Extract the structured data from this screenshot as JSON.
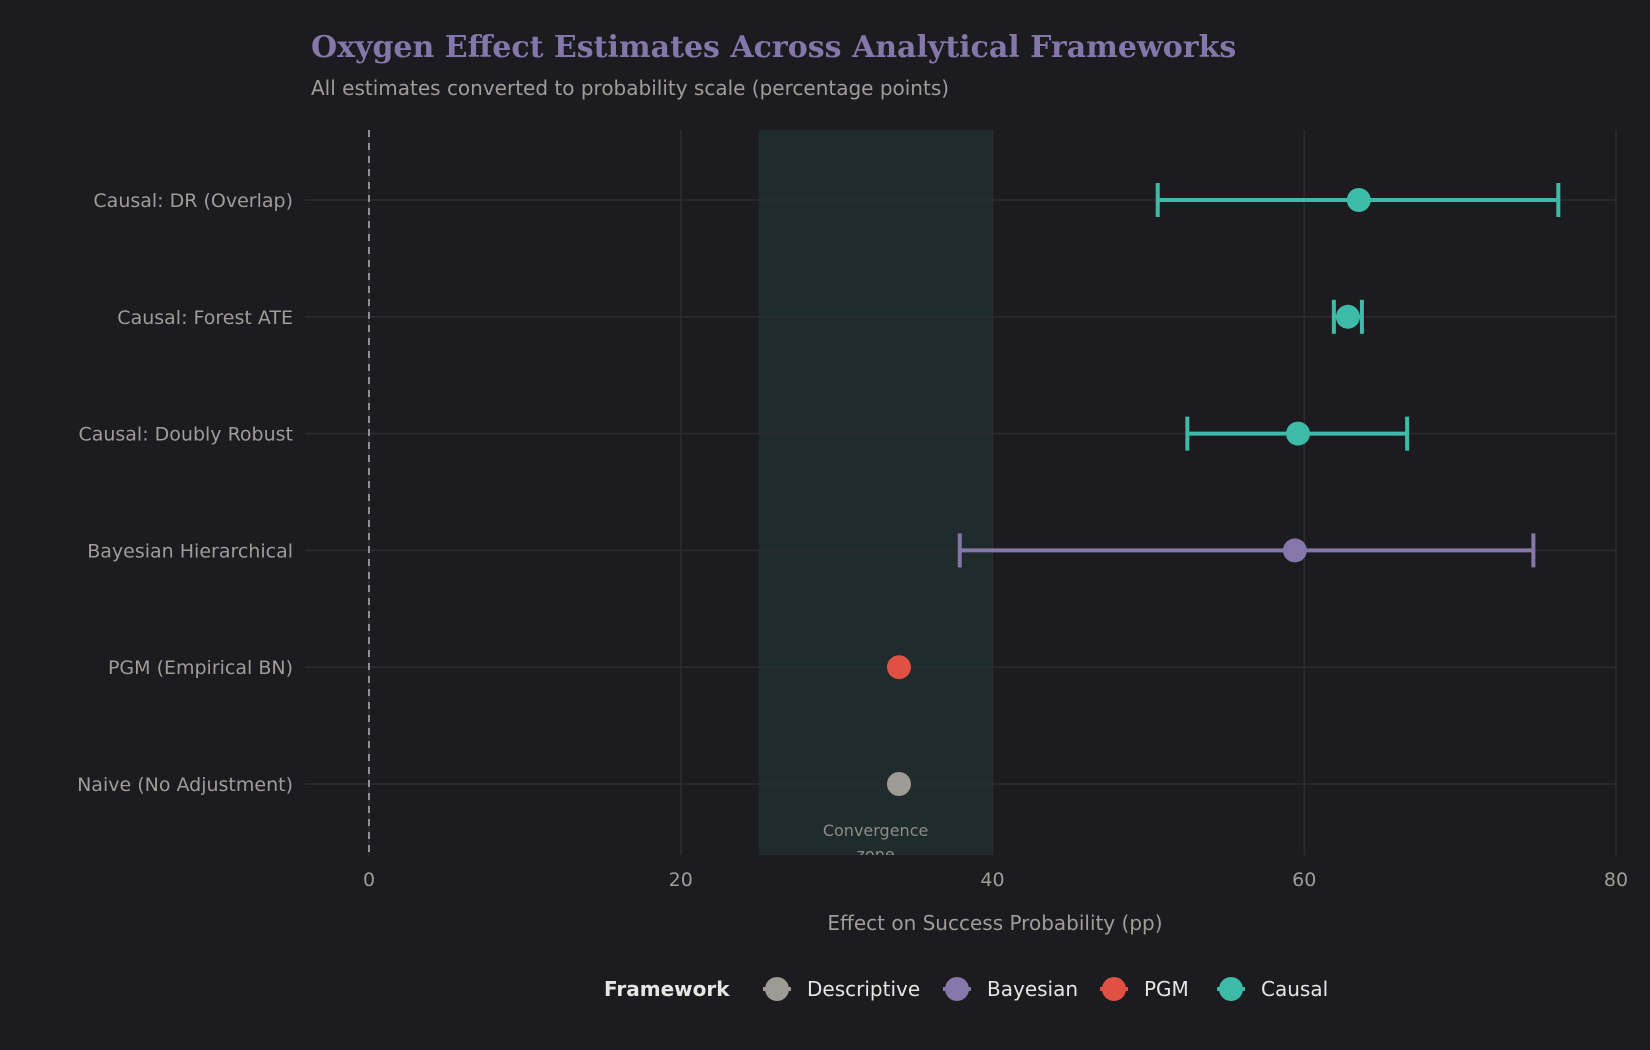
{
  "chart_data": {
    "type": "forest",
    "title": "Oxygen Effect Estimates Across Analytical Frameworks",
    "subtitle": "All estimates converted to probability scale (percentage points)",
    "xlabel": "Effect on Success Probability (pp)",
    "xlim": [
      -4.5,
      80
    ],
    "xticks": [
      0,
      20,
      40,
      60,
      80
    ],
    "grid": true,
    "reference_line": 0,
    "convergence_zone": {
      "range": [
        25,
        40
      ],
      "label": "Convergence zone",
      "color": "#1f2b2c"
    },
    "legend": {
      "title": "Framework",
      "placement": "bottom",
      "entries": [
        {
          "name": "Descriptive",
          "color": "#9e9b94"
        },
        {
          "name": "Bayesian",
          "color": "#8577a9"
        },
        {
          "name": "PGM",
          "color": "#e05144"
        },
        {
          "name": "Causal",
          "color": "#3dbba8"
        }
      ]
    },
    "rows": [
      {
        "label": "Causal: DR (Overlap)",
        "framework": "Causal",
        "estimate": 63.5,
        "lo": 50.6,
        "hi": 76.3
      },
      {
        "label": "Causal: Forest ATE",
        "framework": "Causal",
        "estimate": 62.8,
        "lo": 61.9,
        "hi": 63.7
      },
      {
        "label": "Causal: Doubly Robust",
        "framework": "Causal",
        "estimate": 59.6,
        "lo": 52.5,
        "hi": 66.6
      },
      {
        "label": "Bayesian Hierarchical",
        "framework": "Bayesian",
        "estimate": 59.4,
        "lo": 37.9,
        "hi": 74.7
      },
      {
        "label": "PGM (Empirical BN)",
        "framework": "PGM",
        "estimate": 34.0,
        "lo": null,
        "hi": null
      },
      {
        "label": "Naive (No Adjustment)",
        "framework": "Descriptive",
        "estimate": 34.0,
        "lo": null,
        "hi": null
      }
    ]
  }
}
